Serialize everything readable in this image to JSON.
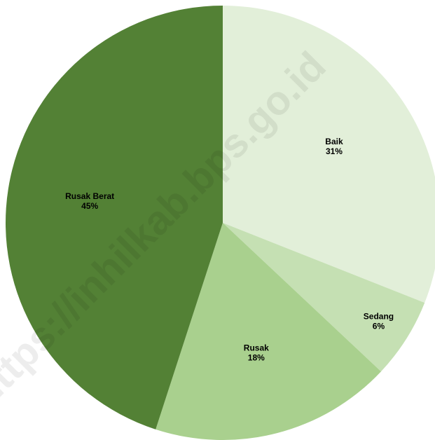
{
  "chart_data": {
    "type": "pie",
    "categories": [
      "Baik",
      "Sedang",
      "Rusak",
      "Rusak Berat"
    ],
    "values": [
      31,
      6,
      18,
      45
    ],
    "value_labels": [
      "31%",
      "6%",
      "18%",
      "45%"
    ],
    "colors": [
      "#e2efd9",
      "#c5e0b3",
      "#a9d08e",
      "#538135"
    ],
    "watermark": "https://inhilkab.bps.go.id"
  }
}
